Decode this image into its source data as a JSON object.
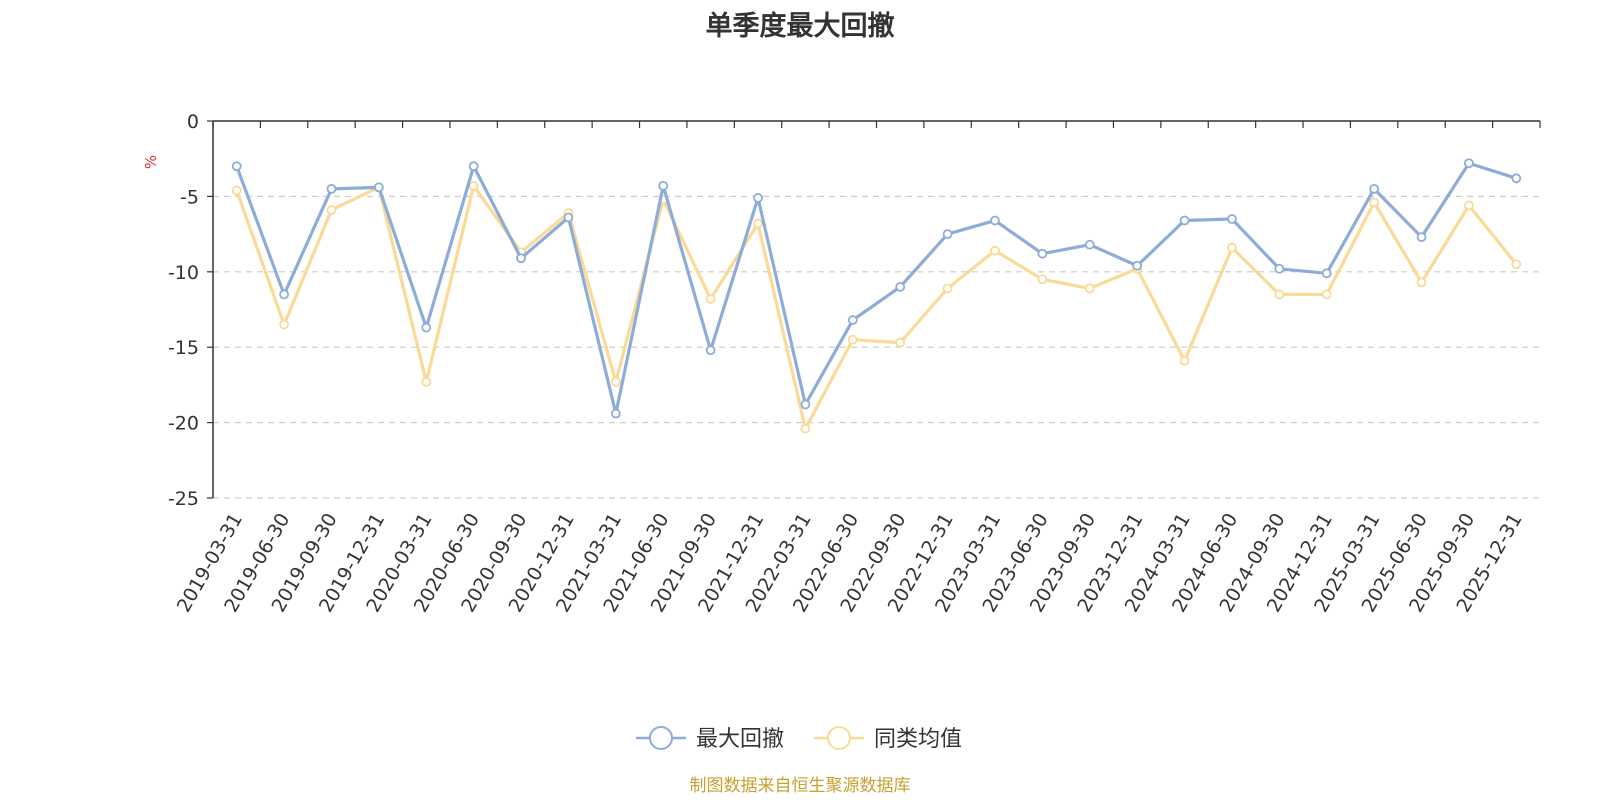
{
  "colors": {
    "series1": "#8eacd8",
    "series2": "#fbd996",
    "unit": "#e03030",
    "source": "#c8a030",
    "grid": "#cccccc",
    "axis": "#333333"
  },
  "source_note": "制图数据来自恒生聚源数据库",
  "chart_data": {
    "type": "line",
    "title": "单季度最大回撤",
    "y_unit": "%",
    "ylim": [
      -25,
      0
    ],
    "yticks": [
      0,
      -5,
      -10,
      -15,
      -20,
      -25
    ],
    "grid": "horizontal-dashed",
    "legend_position": "bottom-center",
    "x": [
      "2019-03-31",
      "2019-06-30",
      "2019-09-30",
      "2019-12-31",
      "2020-03-31",
      "2020-06-30",
      "2020-09-30",
      "2020-12-31",
      "2021-03-31",
      "2021-06-30",
      "2021-09-30",
      "2021-12-31",
      "2022-03-31",
      "2022-06-30",
      "2022-09-30",
      "2022-12-31",
      "2023-03-31",
      "2023-06-30",
      "2023-09-30",
      "2023-12-31",
      "2024-03-31",
      "2024-06-30",
      "2024-09-30",
      "2024-12-31",
      "2025-03-31",
      "2025-06-30",
      "2025-09-30",
      "2025-12-31"
    ],
    "series": [
      {
        "name": "最大回撤",
        "values": [
          -3.0,
          -11.5,
          -4.5,
          -4.4,
          -13.7,
          -3.0,
          -9.1,
          -6.4,
          -19.4,
          -4.3,
          -15.2,
          -5.1,
          -18.8,
          -13.2,
          -11.0,
          -7.5,
          -6.6,
          -8.8,
          -8.2,
          -9.6,
          -6.6,
          -6.5,
          -9.8,
          -10.1,
          -4.5,
          -7.7,
          -2.8,
          -3.8
        ]
      },
      {
        "name": "同类均值",
        "values": [
          -4.6,
          -13.5,
          -5.9,
          -4.4,
          -17.3,
          -4.3,
          -8.7,
          -6.1,
          -17.3,
          -5.2,
          -11.8,
          -6.8,
          -20.4,
          -14.5,
          -14.7,
          -11.1,
          -8.6,
          -10.5,
          -11.1,
          -9.8,
          -15.9,
          -8.4,
          -11.5,
          -11.5,
          -5.4,
          -10.7,
          -5.6,
          -9.5
        ]
      }
    ]
  }
}
